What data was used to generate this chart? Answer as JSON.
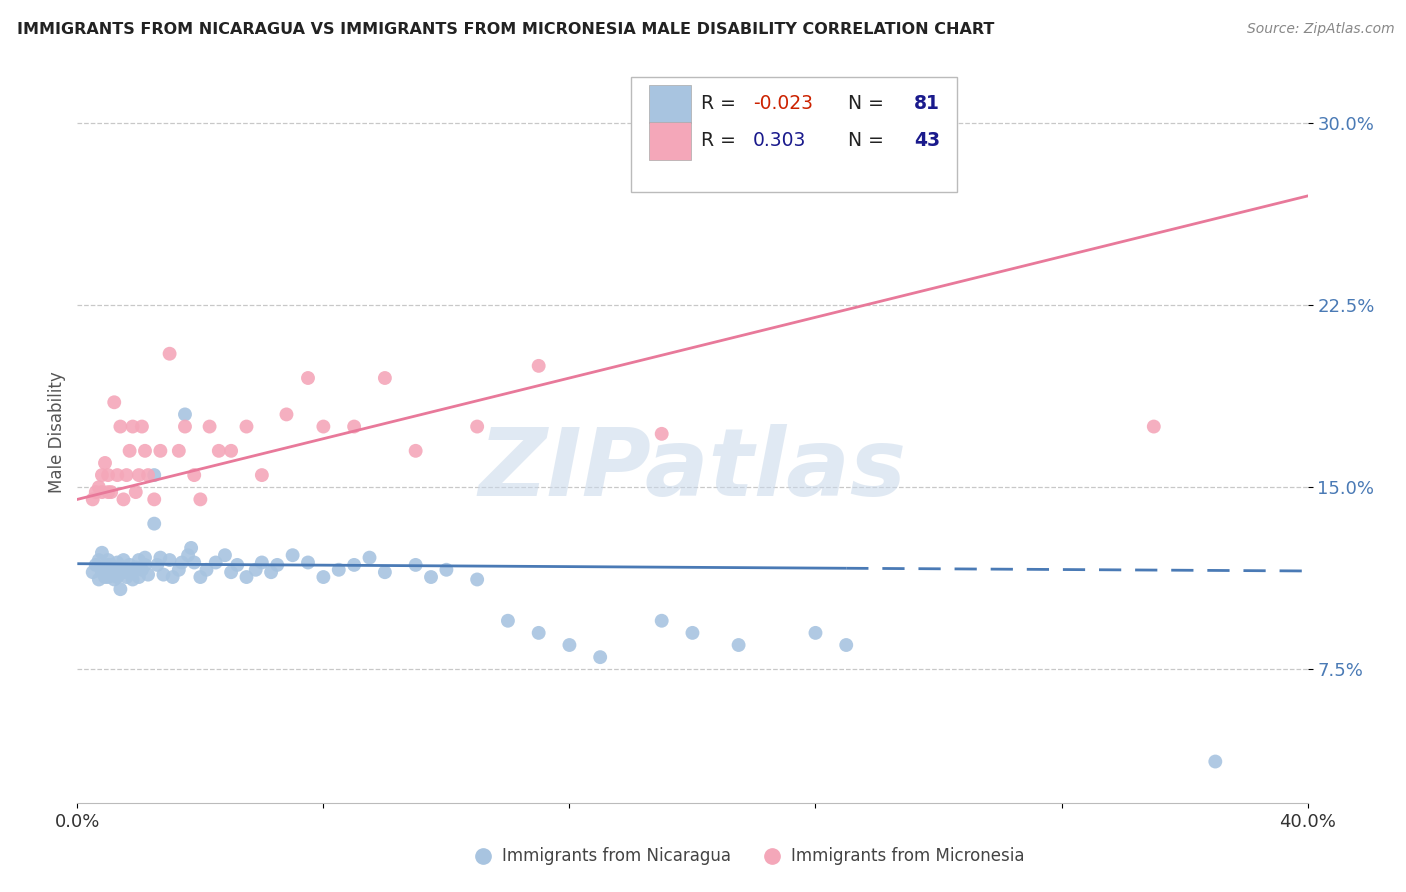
{
  "title": "IMMIGRANTS FROM NICARAGUA VS IMMIGRANTS FROM MICRONESIA MALE DISABILITY CORRELATION CHART",
  "source": "Source: ZipAtlas.com",
  "ylabel": "Male Disability",
  "y_ticks": [
    0.075,
    0.15,
    0.225,
    0.3
  ],
  "y_tick_labels": [
    "7.5%",
    "15.0%",
    "22.5%",
    "30.0%"
  ],
  "xlim": [
    0.0,
    0.4
  ],
  "ylim": [
    0.02,
    0.325
  ],
  "legend_R1": "-0.023",
  "legend_N1": "81",
  "legend_R2": "0.303",
  "legend_N2": "43",
  "color_nicaragua": "#a8c4e0",
  "color_micronesia": "#f4a7b9",
  "color_nicaragua_line": "#4a7ab5",
  "color_micronesia_line": "#e8799a",
  "watermark_text": "ZIPatlas",
  "legend_text_dark": "#1a1a8c",
  "legend_text_red": "#cc2200",
  "blue_scatter_x": [
    0.005,
    0.006,
    0.007,
    0.007,
    0.008,
    0.008,
    0.009,
    0.009,
    0.009,
    0.01,
    0.01,
    0.01,
    0.01,
    0.011,
    0.011,
    0.012,
    0.012,
    0.013,
    0.013,
    0.014,
    0.014,
    0.015,
    0.015,
    0.015,
    0.016,
    0.017,
    0.017,
    0.018,
    0.018,
    0.019,
    0.02,
    0.02,
    0.021,
    0.022,
    0.022,
    0.023,
    0.025,
    0.025,
    0.026,
    0.027,
    0.028,
    0.03,
    0.031,
    0.033,
    0.034,
    0.035,
    0.036,
    0.037,
    0.038,
    0.04,
    0.042,
    0.045,
    0.048,
    0.05,
    0.052,
    0.055,
    0.058,
    0.06,
    0.063,
    0.065,
    0.07,
    0.075,
    0.08,
    0.085,
    0.09,
    0.095,
    0.1,
    0.11,
    0.115,
    0.12,
    0.13,
    0.14,
    0.15,
    0.16,
    0.17,
    0.19,
    0.2,
    0.215,
    0.24,
    0.25,
    0.37
  ],
  "blue_scatter_y": [
    0.115,
    0.118,
    0.12,
    0.112,
    0.115,
    0.123,
    0.113,
    0.115,
    0.117,
    0.118,
    0.116,
    0.113,
    0.12,
    0.115,
    0.118,
    0.112,
    0.116,
    0.119,
    0.113,
    0.115,
    0.108,
    0.115,
    0.117,
    0.12,
    0.113,
    0.116,
    0.118,
    0.112,
    0.115,
    0.117,
    0.12,
    0.113,
    0.116,
    0.118,
    0.121,
    0.114,
    0.135,
    0.155,
    0.118,
    0.121,
    0.114,
    0.12,
    0.113,
    0.116,
    0.119,
    0.18,
    0.122,
    0.125,
    0.119,
    0.113,
    0.116,
    0.119,
    0.122,
    0.115,
    0.118,
    0.113,
    0.116,
    0.119,
    0.115,
    0.118,
    0.122,
    0.119,
    0.113,
    0.116,
    0.118,
    0.121,
    0.115,
    0.118,
    0.113,
    0.116,
    0.112,
    0.095,
    0.09,
    0.085,
    0.08,
    0.095,
    0.09,
    0.085,
    0.09,
    0.085,
    0.037
  ],
  "pink_scatter_x": [
    0.005,
    0.006,
    0.007,
    0.008,
    0.008,
    0.009,
    0.01,
    0.01,
    0.011,
    0.012,
    0.013,
    0.014,
    0.015,
    0.016,
    0.017,
    0.018,
    0.019,
    0.02,
    0.021,
    0.022,
    0.023,
    0.025,
    0.027,
    0.03,
    0.033,
    0.035,
    0.038,
    0.04,
    0.043,
    0.046,
    0.05,
    0.055,
    0.06,
    0.068,
    0.075,
    0.08,
    0.09,
    0.1,
    0.11,
    0.13,
    0.15,
    0.19,
    0.35
  ],
  "pink_scatter_y": [
    0.145,
    0.148,
    0.15,
    0.148,
    0.155,
    0.16,
    0.148,
    0.155,
    0.148,
    0.185,
    0.155,
    0.175,
    0.145,
    0.155,
    0.165,
    0.175,
    0.148,
    0.155,
    0.175,
    0.165,
    0.155,
    0.145,
    0.165,
    0.205,
    0.165,
    0.175,
    0.155,
    0.145,
    0.175,
    0.165,
    0.165,
    0.175,
    0.155,
    0.18,
    0.195,
    0.175,
    0.175,
    0.195,
    0.165,
    0.175,
    0.2,
    0.172,
    0.175
  ]
}
